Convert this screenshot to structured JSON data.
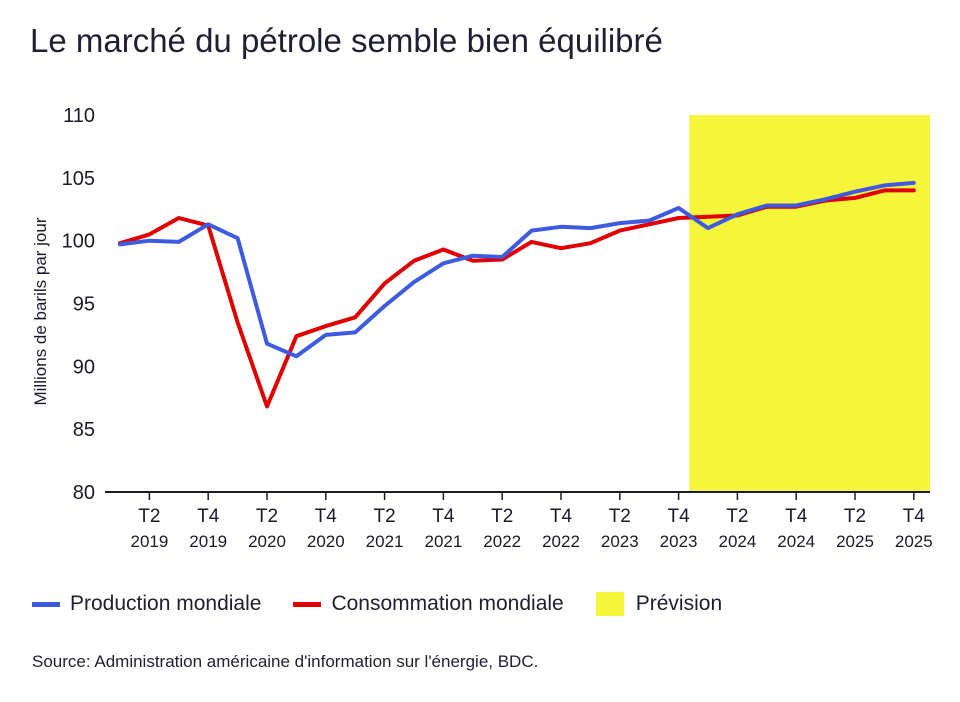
{
  "title": "Le marché du pétrole semble bien équilibré",
  "source": "Source: Administration américaine d'information sur l'énergie, BDC.",
  "colors": {
    "production": "#3d5ae0",
    "consommation": "#e00000",
    "prevision": "#f5f53c",
    "axis": "#1a1a2e"
  },
  "chart_data": {
    "type": "line",
    "ylabel": "Millions de barils par jour",
    "ylim": [
      80,
      110
    ],
    "yticks": [
      80,
      85,
      90,
      95,
      100,
      105,
      110
    ],
    "x": [
      "T1 2019",
      "T2 2019",
      "T3 2019",
      "T4 2019",
      "T1 2020",
      "T2 2020",
      "T3 2020",
      "T4 2020",
      "T1 2021",
      "T2 2021",
      "T3 2021",
      "T4 2021",
      "T1 2022",
      "T2 2022",
      "T3 2022",
      "T4 2022",
      "T1 2023",
      "T2 2023",
      "T3 2023",
      "T4 2023",
      "T1 2024",
      "T2 2024",
      "T3 2024",
      "T4 2024",
      "T1 2025",
      "T2 2025",
      "T3 2025",
      "T4 2025"
    ],
    "xtick_labels": [
      {
        "top": "T2",
        "bottom": "2019"
      },
      {
        "top": "T4",
        "bottom": "2019"
      },
      {
        "top": "T2",
        "bottom": "2020"
      },
      {
        "top": "T4",
        "bottom": "2020"
      },
      {
        "top": "T2",
        "bottom": "2021"
      },
      {
        "top": "T4",
        "bottom": "2021"
      },
      {
        "top": "T2",
        "bottom": "2022"
      },
      {
        "top": "T4",
        "bottom": "2022"
      },
      {
        "top": "T2",
        "bottom": "2023"
      },
      {
        "top": "T4",
        "bottom": "2023"
      },
      {
        "top": "T2",
        "bottom": "2024"
      },
      {
        "top": "T4",
        "bottom": "2024"
      },
      {
        "top": "T2",
        "bottom": "2025"
      },
      {
        "top": "T4",
        "bottom": "2025"
      }
    ],
    "forecast_region": {
      "label": "Prévision",
      "start": "T1 2024",
      "end": "T4 2025"
    },
    "series": [
      {
        "name": "Production mondiale",
        "values": [
          99.7,
          100.0,
          99.9,
          101.3,
          100.2,
          91.8,
          90.8,
          92.5,
          92.7,
          94.8,
          96.7,
          98.2,
          98.8,
          98.7,
          100.8,
          101.1,
          101.0,
          101.4,
          101.6,
          102.6,
          101.0,
          102.1,
          102.8,
          102.8,
          103.3,
          103.9,
          104.4,
          104.6
        ]
      },
      {
        "name": "Consommation mondiale",
        "values": [
          99.8,
          100.5,
          101.8,
          101.2,
          93.5,
          86.8,
          92.4,
          93.2,
          93.9,
          96.6,
          98.4,
          99.3,
          98.4,
          98.5,
          99.9,
          99.4,
          99.8,
          100.8,
          101.3,
          101.8,
          101.9,
          102.0,
          102.7,
          102.7,
          103.2,
          103.4,
          104.0,
          104.0
        ]
      }
    ],
    "legend": [
      "Production mondiale",
      "Consommation mondiale",
      "Prévision"
    ],
    "legend_position": "bottom-left",
    "grid": false
  }
}
